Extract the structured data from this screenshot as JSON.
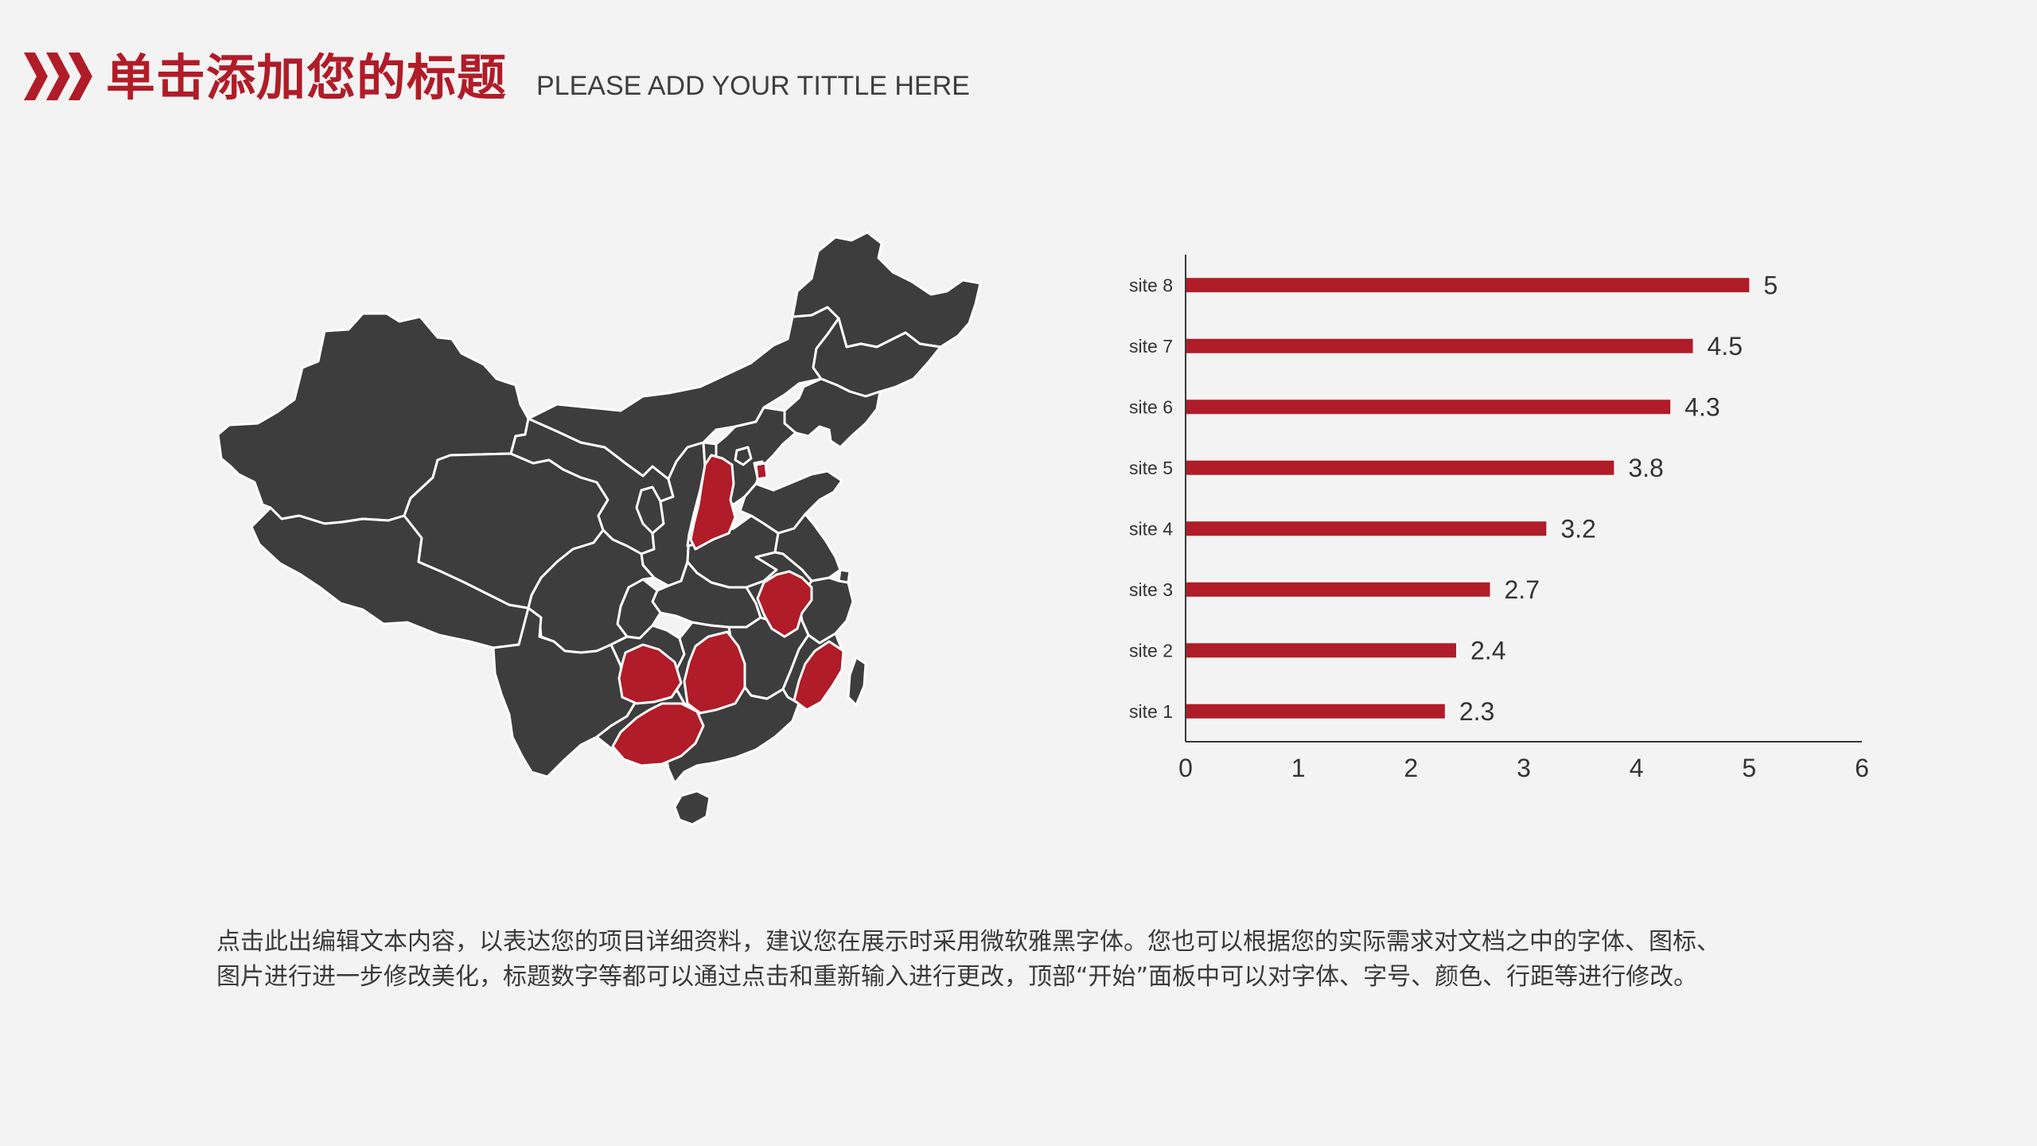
{
  "header": {
    "title": "单击添加您的标题",
    "subtitle": "PLEASE ADD YOUR TITTLE HERE",
    "icon": "triple-chevron-icon",
    "accent_color": "#b01c28"
  },
  "map": {
    "region": "China provinces",
    "base_color": "#3d3d3d",
    "highlight_color": "#b01c28",
    "border_color": "#ffffff"
  },
  "chart_data": {
    "type": "bar",
    "orientation": "horizontal",
    "categories": [
      "site 1",
      "site 2",
      "site 3",
      "site 4",
      "site 5",
      "site 6",
      "site 7",
      "site 8"
    ],
    "values": [
      2.3,
      2.4,
      2.7,
      3.2,
      3.8,
      4.3,
      4.5,
      5
    ],
    "value_labels": [
      "2.3",
      "2.4",
      "2.7",
      "3.2",
      "3.8",
      "4.3",
      "4.5",
      "5"
    ],
    "title": "",
    "xlabel": "",
    "ylabel": "",
    "xlim": [
      0,
      6
    ],
    "x_ticks": [
      "0",
      "1",
      "2",
      "3",
      "4",
      "5",
      "6"
    ],
    "grid": false,
    "legend": "none",
    "bar_color": "#b01c28"
  },
  "body_text": {
    "line1": "点击此出编辑文本内容，以表达您的项目详细资料，建议您在展示时采用微软雅黑字体。您也可以根据您的实际需求对文档之中的字体、图标、",
    "line2": "图片进行进一步修改美化，标题数字等都可以通过点击和重新输入进行更改，顶部“开始”面板中可以对字体、字号、颜色、行距等进行修改。"
  }
}
